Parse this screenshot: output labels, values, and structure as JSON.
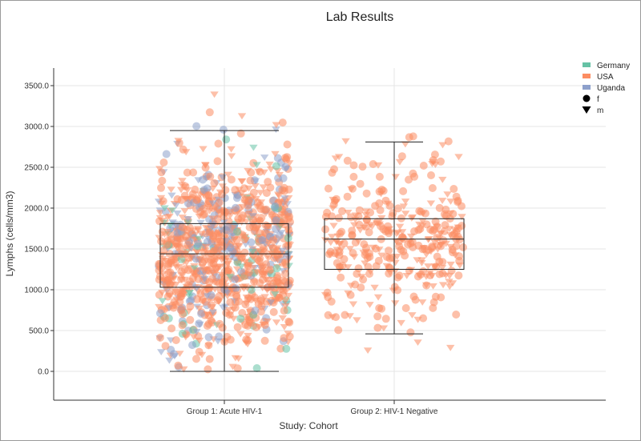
{
  "chart_data": {
    "type": "scatter",
    "subtype": "box-plot-with-jittered-points",
    "title": "Lab Results",
    "xlabel": "Study: Cohort",
    "ylabel": "Lymphs (cells/mm3)",
    "categories": [
      "Group 1: Acute HIV-1",
      "Group 2: HIV-1 Negative"
    ],
    "ylim": [
      -350,
      3900
    ],
    "yticks": [
      0,
      500,
      1000,
      1500,
      2000,
      2500,
      3000,
      3500
    ],
    "ytick_labels": [
      "0.0",
      "500.0",
      "1000.0",
      "1500.0",
      "2000.0",
      "2500.0",
      "3000.0",
      "3500.0"
    ],
    "grid": true,
    "legend_position": "top-right",
    "boxes": [
      {
        "category": "Group 1: Acute HIV-1",
        "min": 0,
        "q1": 1030,
        "median": 1440,
        "q3": 1810,
        "max": 2950
      },
      {
        "category": "Group 2: HIV-1 Negative",
        "min": 460,
        "q1": 1250,
        "median": 1620,
        "q3": 1870,
        "max": 2810
      }
    ],
    "color_legend": [
      {
        "name": "Germany",
        "color": "#66c2a5"
      },
      {
        "name": "USA",
        "color": "#fc8d62"
      },
      {
        "name": "Uganda",
        "color": "#8da0cb"
      }
    ],
    "shape_legend": [
      {
        "name": "f",
        "shape": "circle"
      },
      {
        "name": "m",
        "shape": "triangle"
      }
    ],
    "point_distribution": [
      {
        "category": "Group 1: Acute HIV-1",
        "count": 1100,
        "center": 1440,
        "spread": 600,
        "min": 0,
        "max": 3400,
        "mix": {
          "USA": 0.72,
          "Uganda": 0.2,
          "Germany": 0.08
        }
      },
      {
        "category": "Group 2: HIV-1 Negative",
        "count": 360,
        "center": 1600,
        "spread": 520,
        "min": 230,
        "max": 2880,
        "mix": {
          "USA": 1.0,
          "Uganda": 0.0,
          "Germany": 0.0
        }
      }
    ]
  }
}
